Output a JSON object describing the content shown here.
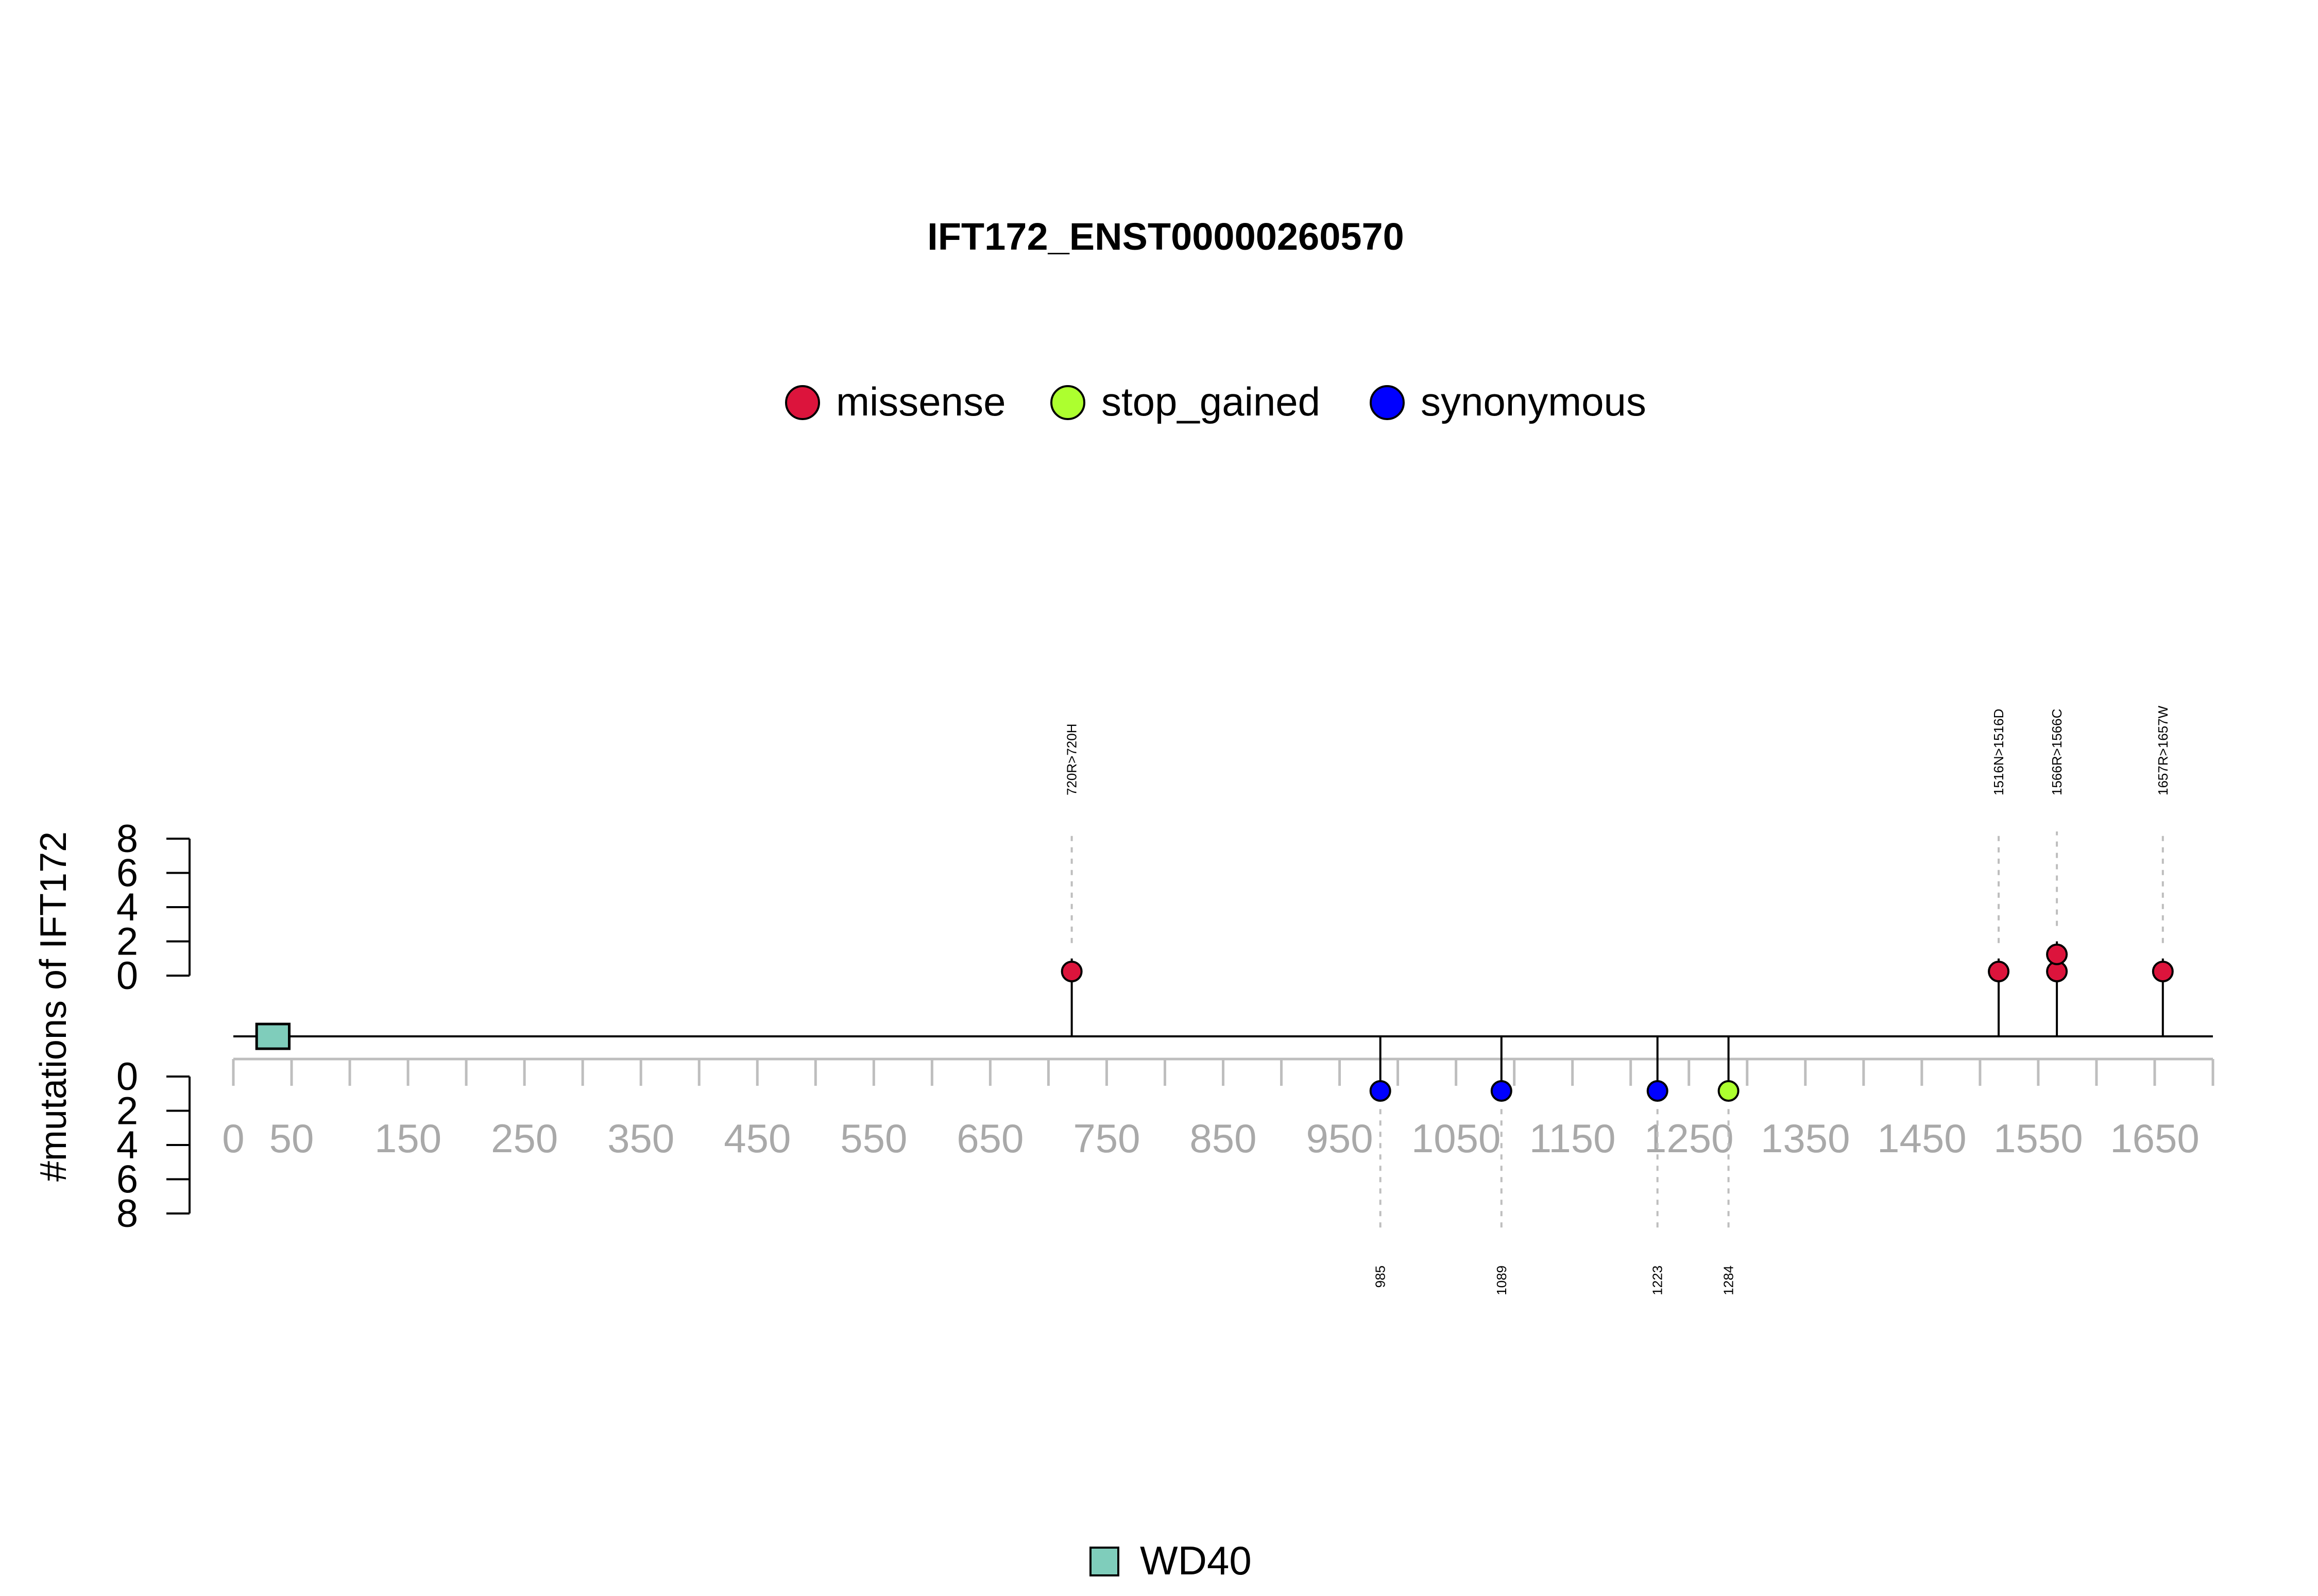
{
  "chart_data": {
    "type": "lollipop",
    "title": "IFT172_ENST00000260570",
    "ylabel": "#mutations of IFT172",
    "xlim": [
      0,
      1700
    ],
    "x_ticks": [
      0,
      50,
      150,
      250,
      350,
      450,
      550,
      650,
      750,
      850,
      950,
      1050,
      1150,
      1250,
      1350,
      1450,
      1550,
      1650
    ],
    "x_minor_ticks": [
      0,
      50,
      100,
      150,
      200,
      250,
      300,
      350,
      400,
      450,
      500,
      550,
      600,
      650,
      700,
      750,
      800,
      850,
      900,
      950,
      1000,
      1050,
      1100,
      1150,
      1200,
      1250,
      1300,
      1350,
      1400,
      1450,
      1500,
      1550,
      1600,
      1650,
      1700
    ],
    "y_ticks": [
      0,
      2,
      4,
      6,
      8
    ],
    "ylim": [
      0,
      8
    ],
    "legend": {
      "position": "top-center",
      "entries": [
        {
          "name": "missense",
          "color": "#DC143C"
        },
        {
          "name": "stop_gained",
          "color": "#ADFF2F"
        },
        {
          "name": "synonymous",
          "color": "#0000FF"
        }
      ]
    },
    "upper_mutations": [
      {
        "position": 720,
        "count": 1,
        "type": "missense",
        "label": "720R>720H"
      },
      {
        "position": 1516,
        "count": 1,
        "type": "missense",
        "label": "1516N>1516D"
      },
      {
        "position": 1566,
        "count": 2,
        "type": "missense",
        "label": "1566R>1566C"
      },
      {
        "position": 1657,
        "count": 1,
        "type": "missense",
        "label": "1657R>1657W"
      }
    ],
    "lower_mutations": [
      {
        "position": 985,
        "count": 1,
        "type": "synonymous",
        "label": "985"
      },
      {
        "position": 1089,
        "count": 1,
        "type": "synonymous",
        "label": "1089"
      },
      {
        "position": 1223,
        "count": 1,
        "type": "synonymous",
        "label": "1223"
      },
      {
        "position": 1284,
        "count": 1,
        "type": "stop_gained",
        "label": "1284"
      }
    ],
    "domains": [
      {
        "name": "WD40",
        "start": 20,
        "end": 48,
        "color": "#7FCDBB"
      }
    ],
    "domain_legend": {
      "position": "bottom-center"
    }
  }
}
